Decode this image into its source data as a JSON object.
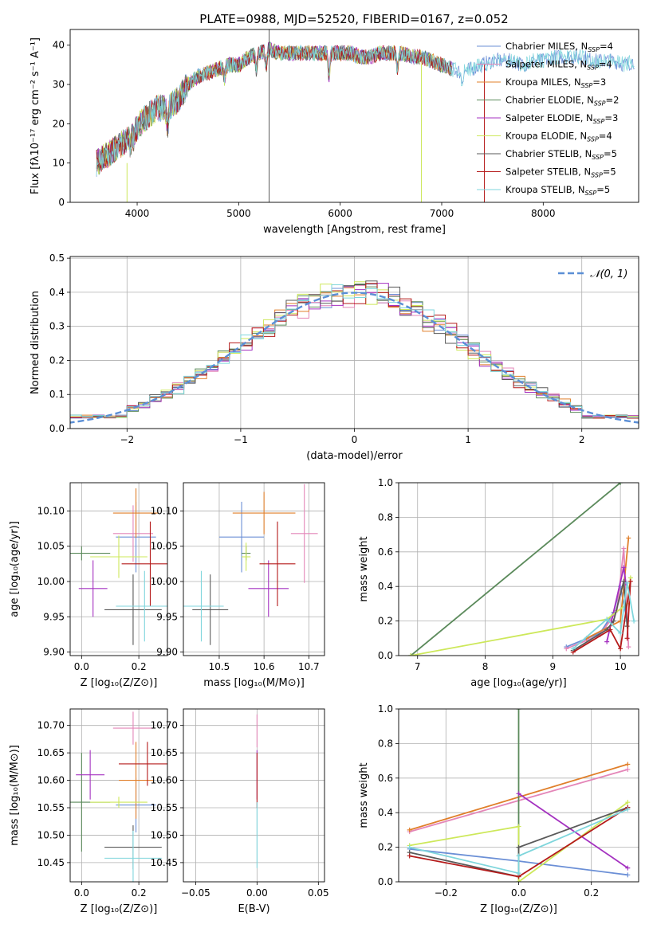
{
  "title": "PLATE=0988, MJD=52520, FIBERID=0167, z=0.052",
  "colors": {
    "chab_miles": "#6b8fd6",
    "salp_miles": "#e486b8",
    "krou_miles": "#e07f2a",
    "chab_elodie": "#5b8a5b",
    "salp_elodie": "#a431c0",
    "krou_elodie": "#cde85a",
    "chab_stelib": "#5a5a5a",
    "salp_stelib": "#b51b1b",
    "krou_stelib": "#7fd6dc",
    "normal": "#5b8fd6",
    "grid": "#b0b0b0"
  },
  "models": [
    {
      "key": "chab_miles",
      "label": "Chabrier MILES, N",
      "sub": "SSP",
      "n": "=4"
    },
    {
      "key": "salp_miles",
      "label": "Salpeter MILES, N",
      "sub": "SSP",
      "n": "=4"
    },
    {
      "key": "krou_miles",
      "label": "Kroupa MILES, N",
      "sub": "SSP",
      "n": "=3"
    },
    {
      "key": "chab_elodie",
      "label": "Chabrier ELODIE, N",
      "sub": "SSP",
      "n": "=2"
    },
    {
      "key": "salp_elodie",
      "label": "Salpeter ELODIE, N",
      "sub": "SSP",
      "n": "=3"
    },
    {
      "key": "krou_elodie",
      "label": "Kroupa ELODIE, N",
      "sub": "SSP",
      "n": "=4"
    },
    {
      "key": "chab_stelib",
      "label": "Chabrier STELIB, N",
      "sub": "SSP",
      "n": "=5"
    },
    {
      "key": "salp_stelib",
      "label": "Salpeter STELIB, N",
      "sub": "SSP",
      "n": "=5"
    },
    {
      "key": "krou_stelib",
      "label": "Kroupa STELIB, N",
      "sub": "SSP",
      "n": "=5"
    }
  ],
  "chart_data": [
    {
      "id": "spectrum",
      "type": "line",
      "xlabel": "wavelength [Angstrom, rest frame]",
      "ylabel": "Flux [fλ10⁻¹⁷ erg cm⁻² s⁻¹ A⁻¹]",
      "xlim": [
        3340,
        8940
      ],
      "ylim": [
        0,
        44
      ],
      "xticks": [
        4000,
        5000,
        6000,
        7000,
        8000
      ],
      "yticks": [
        0,
        10,
        20,
        30,
        40
      ],
      "continuum": [
        [
          3600,
          10
        ],
        [
          3700,
          12
        ],
        [
          3800,
          14
        ],
        [
          3900,
          16
        ],
        [
          4000,
          19
        ],
        [
          4100,
          22
        ],
        [
          4200,
          24
        ],
        [
          4300,
          24
        ],
        [
          4400,
          26
        ],
        [
          4500,
          30
        ],
        [
          4600,
          32
        ],
        [
          4700,
          33
        ],
        [
          4800,
          34
        ],
        [
          4900,
          35
        ],
        [
          5000,
          35
        ],
        [
          5100,
          37
        ],
        [
          5200,
          38
        ],
        [
          5300,
          39
        ],
        [
          5400,
          38
        ],
        [
          5500,
          38
        ],
        [
          5600,
          38
        ],
        [
          5700,
          38
        ],
        [
          5800,
          38
        ],
        [
          5900,
          38
        ],
        [
          6000,
          38
        ],
        [
          6100,
          38
        ],
        [
          6200,
          37
        ],
        [
          6300,
          37
        ],
        [
          6400,
          38
        ],
        [
          6500,
          38
        ],
        [
          6600,
          38
        ],
        [
          6700,
          37
        ],
        [
          6800,
          37
        ],
        [
          6900,
          36
        ],
        [
          7000,
          35
        ],
        [
          7100,
          34
        ],
        [
          7200,
          33
        ],
        [
          7300,
          34
        ],
        [
          7400,
          35
        ],
        [
          7500,
          36
        ],
        [
          7600,
          36
        ],
        [
          7700,
          36
        ],
        [
          7800,
          35
        ],
        [
          7900,
          36
        ],
        [
          8000,
          36
        ],
        [
          8100,
          37
        ],
        [
          8200,
          37
        ],
        [
          8300,
          37
        ],
        [
          8400,
          37
        ],
        [
          8500,
          36
        ],
        [
          8600,
          36
        ],
        [
          8700,
          36
        ],
        [
          8800,
          35
        ],
        [
          8900,
          36
        ]
      ],
      "dips": [
        [
          3933,
          3
        ],
        [
          3968,
          2
        ],
        [
          4300,
          -5
        ],
        [
          4861,
          -3
        ],
        [
          5175,
          -4
        ],
        [
          5270,
          -4
        ],
        [
          5890,
          -6
        ],
        [
          6563,
          -4
        ],
        [
          7200,
          -2
        ]
      ],
      "spikes": [
        {
          "model": "chab_stelib",
          "x": 5300,
          "y": 0,
          "y2": 44
        },
        {
          "model": "krou_elodie",
          "x": 3900,
          "y": 0,
          "y2": 10
        },
        {
          "model": "krou_elodie",
          "x": 6800,
          "y": 0,
          "y2": 35
        },
        {
          "model": "salp_stelib",
          "x": 7420,
          "y": 0,
          "y2": 35
        }
      ]
    },
    {
      "id": "residuals",
      "type": "histogram",
      "xlabel": "(data-model)/error",
      "ylabel": "Normed distribution",
      "xlim": [
        -2.5,
        2.5
      ],
      "ylim": [
        0,
        0.505
      ],
      "xticks": [
        -2,
        -1,
        0,
        1,
        2
      ],
      "yticks": [
        0.0,
        0.1,
        0.2,
        0.3,
        0.4,
        0.5
      ],
      "bin_width": 0.1,
      "series_note": "N(0,1) reference",
      "legend": "𝒩(0, 1)"
    },
    {
      "id": "age_vs_Z",
      "type": "scatter",
      "xlabel": "Z [log₁₀(Z/Z⊙)]",
      "ylabel": "age  [log₁₀(age/yr)]",
      "xlim": [
        -0.04,
        0.3
      ],
      "ylim": [
        9.895,
        10.14
      ],
      "xticks": [
        0.0,
        0.2
      ],
      "yticks": [
        9.9,
        9.95,
        10.0,
        10.05,
        10.1
      ],
      "points": [
        {
          "model": "chab_miles",
          "x": 0.19,
          "y": 10.063,
          "xerr": 0.07,
          "yerr": 0.05
        },
        {
          "model": "salp_miles",
          "x": 0.18,
          "y": 10.068,
          "xerr": 0.07,
          "yerr": 0.04
        },
        {
          "model": "krou_miles",
          "x": 0.19,
          "y": 10.097,
          "xerr": 0.08,
          "yerr": 0.035
        },
        {
          "model": "chab_elodie",
          "x": 0.0,
          "y": 10.04,
          "xerr": 0.1,
          "yerr": 0.01
        },
        {
          "model": "salp_elodie",
          "x": 0.04,
          "y": 9.99,
          "xerr": 0.05,
          "yerr": 0.04
        },
        {
          "model": "krou_elodie",
          "x": 0.13,
          "y": 10.035,
          "xerr": 0.1,
          "yerr": 0.03
        },
        {
          "model": "chab_stelib",
          "x": 0.18,
          "y": 9.96,
          "xerr": 0.1,
          "yerr": 0.05
        },
        {
          "model": "salp_stelib",
          "x": 0.24,
          "y": 10.025,
          "xerr": 0.1,
          "yerr": 0.06
        },
        {
          "model": "krou_stelib",
          "x": 0.22,
          "y": 9.965,
          "xerr": 0.1,
          "yerr": 0.05
        }
      ]
    },
    {
      "id": "age_vs_mass",
      "type": "scatter",
      "xlabel": "mass [log₁₀(M/M⊙)]",
      "ylabel": "",
      "xlim": [
        10.42,
        10.735
      ],
      "ylim": [
        9.895,
        10.14
      ],
      "xticks": [
        10.5,
        10.6,
        10.7
      ],
      "yticks": [
        9.9,
        9.95,
        10.0,
        10.05,
        10.1
      ],
      "points": [
        {
          "model": "chab_miles",
          "x": 10.55,
          "y": 10.063,
          "xerr": 0.05,
          "yerr": 0.05
        },
        {
          "model": "salp_miles",
          "x": 10.69,
          "y": 10.068,
          "xerr": 0.03,
          "yerr": 0.07
        },
        {
          "model": "krou_miles",
          "x": 10.6,
          "y": 10.097,
          "xerr": 0.07,
          "yerr": 0.03
        },
        {
          "model": "chab_elodie",
          "x": 10.56,
          "y": 10.04,
          "xerr": 0.01,
          "yerr": 0.01
        },
        {
          "model": "salp_elodie",
          "x": 10.61,
          "y": 9.99,
          "xerr": 0.045,
          "yerr": 0.04
        },
        {
          "model": "krou_elodie",
          "x": 10.56,
          "y": 10.035,
          "xerr": 0.01,
          "yerr": 0.02
        },
        {
          "model": "chab_stelib",
          "x": 10.48,
          "y": 9.96,
          "xerr": 0.04,
          "yerr": 0.05
        },
        {
          "model": "salp_stelib",
          "x": 10.63,
          "y": 10.025,
          "xerr": 0.04,
          "yerr": 0.06
        },
        {
          "model": "krou_stelib",
          "x": 10.46,
          "y": 9.965,
          "xerr": 0.05,
          "yerr": 0.05
        }
      ]
    },
    {
      "id": "weight_vs_age",
      "type": "line",
      "xlabel": "age  [log₁₀(age/yr)]",
      "ylabel": "mass weight",
      "xlim": [
        6.72,
        10.27
      ],
      "ylim": [
        0,
        1.0
      ],
      "xticks": [
        7,
        8,
        9,
        10
      ],
      "yticks": [
        0.0,
        0.2,
        0.4,
        0.6,
        0.8,
        1.0
      ],
      "series": [
        {
          "model": "chab_miles",
          "x": [
            9.2,
            9.7,
            9.9,
            10.0,
            10.1
          ],
          "y": [
            0.05,
            0.13,
            0.25,
            0.4,
            0.2
          ]
        },
        {
          "model": "salp_miles",
          "x": [
            9.2,
            9.7,
            9.95,
            10.05,
            10.12
          ],
          "y": [
            0.04,
            0.12,
            0.26,
            0.62,
            0.05
          ]
        },
        {
          "model": "krou_miles",
          "x": [
            9.5,
            10.0,
            10.12
          ],
          "y": [
            0.1,
            0.2,
            0.68
          ]
        },
        {
          "model": "chab_elodie",
          "x": [
            6.9,
            10.0
          ],
          "y": [
            0.0,
            1.0
          ]
        },
        {
          "model": "salp_elodie",
          "x": [
            9.8,
            10.05,
            10.08
          ],
          "y": [
            0.08,
            0.51,
            0.42
          ]
        },
        {
          "model": "krou_elodie",
          "x": [
            6.9,
            9.8,
            10.1,
            10.15
          ],
          "y": [
            0.0,
            0.21,
            0.3,
            0.45
          ]
        },
        {
          "model": "chab_stelib",
          "x": [
            9.3,
            9.8,
            9.9,
            10.05,
            10.1
          ],
          "y": [
            0.03,
            0.15,
            0.2,
            0.43,
            0.17
          ]
        },
        {
          "model": "salp_stelib",
          "x": [
            9.3,
            9.85,
            10.0,
            10.15,
            10.1
          ],
          "y": [
            0.02,
            0.15,
            0.04,
            0.43,
            0.1
          ]
        },
        {
          "model": "krou_stelib",
          "x": [
            9.3,
            9.8,
            10.0,
            10.1,
            10.2
          ],
          "y": [
            0.04,
            0.21,
            0.13,
            0.42,
            0.2
          ]
        }
      ]
    },
    {
      "id": "mass_vs_Z",
      "type": "scatter",
      "xlabel": "Z [log₁₀(Z/Z⊙)]",
      "ylabel": "mass [log₁₀(M/M⊙)]",
      "xlim": [
        -0.04,
        0.3
      ],
      "ylim": [
        10.415,
        10.73
      ],
      "xticks": [
        0.0,
        0.2
      ],
      "yticks": [
        10.45,
        10.5,
        10.55,
        10.6,
        10.65,
        10.7
      ],
      "points": [
        {
          "model": "chab_miles",
          "x": 0.19,
          "y": 10.555,
          "xerr": 0.07,
          "yerr": 0.05
        },
        {
          "model": "salp_miles",
          "x": 0.18,
          "y": 10.695,
          "xerr": 0.07,
          "yerr": 0.03
        },
        {
          "model": "krou_miles",
          "x": 0.19,
          "y": 10.6,
          "xerr": 0.06,
          "yerr": 0.07
        },
        {
          "model": "chab_elodie",
          "x": 0.0,
          "y": 10.56,
          "xerr": 0.1,
          "yerr": 0.09
        },
        {
          "model": "salp_elodie",
          "x": 0.03,
          "y": 10.61,
          "xerr": 0.05,
          "yerr": 0.045
        },
        {
          "model": "krou_elodie",
          "x": 0.13,
          "y": 10.56,
          "xerr": 0.1,
          "yerr": 0.01
        },
        {
          "model": "chab_stelib",
          "x": 0.18,
          "y": 10.478,
          "xerr": 0.1,
          "yerr": 0.04
        },
        {
          "model": "salp_stelib",
          "x": 0.23,
          "y": 10.63,
          "xerr": 0.1,
          "yerr": 0.04
        },
        {
          "model": "krou_stelib",
          "x": 0.18,
          "y": 10.458,
          "xerr": 0.1,
          "yerr": 0.05
        }
      ]
    },
    {
      "id": "mass_vs_ebv",
      "type": "scatter",
      "xlabel": "E(B-V)",
      "ylabel": "",
      "xlim": [
        -0.06,
        0.055
      ],
      "ylim": [
        10.415,
        10.73
      ],
      "xticks": [
        -0.05,
        0.0,
        0.05
      ],
      "xticklabels": [
        "−0.05",
        "0.00",
        "0.05"
      ],
      "yticks": [
        10.45,
        10.5,
        10.55,
        10.6,
        10.65,
        10.7
      ],
      "points": [
        {
          "model": "salp_miles",
          "x": 0.0,
          "y": 10.69,
          "xerr": 0.0,
          "yerr": 0.03
        },
        {
          "model": "salp_elodie",
          "x": 0.0,
          "y": 10.61,
          "xerr": 0.0,
          "yerr": 0.045
        },
        {
          "model": "salp_stelib",
          "x": 0.0,
          "y": 10.6,
          "xerr": 0.0,
          "yerr": 0.05
        },
        {
          "model": "krou_stelib",
          "x": 0.0,
          "y": 10.5,
          "xerr": 0.0,
          "yerr": 0.06
        }
      ]
    },
    {
      "id": "weight_vs_Z",
      "type": "line",
      "xlabel": "Z [log₁₀(Z/Z⊙)]",
      "ylabel": "mass weight",
      "xlim": [
        -0.33,
        0.33
      ],
      "ylim": [
        0,
        1.0
      ],
      "xticks": [
        -0.2,
        0.0,
        0.2
      ],
      "xticklabels": [
        "−0.2",
        "0.0",
        "0.2"
      ],
      "yticks": [
        0.0,
        0.2,
        0.4,
        0.6,
        0.8,
        1.0
      ],
      "series": [
        {
          "model": "chab_miles",
          "x": [
            -0.3,
            0.0,
            0.3
          ],
          "y": [
            0.19,
            0.12,
            0.04
          ]
        },
        {
          "model": "salp_miles",
          "x": [
            -0.3,
            0.3
          ],
          "y": [
            0.29,
            0.65
          ]
        },
        {
          "model": "krou_miles",
          "x": [
            -0.3,
            0.3
          ],
          "y": [
            0.3,
            0.68
          ]
        },
        {
          "model": "chab_elodie",
          "x": [
            0.0,
            0.0
          ],
          "y": [
            0.0,
            1.0
          ]
        },
        {
          "model": "salp_elodie",
          "x": [
            0.0,
            0.3
          ],
          "y": [
            0.51,
            0.08
          ]
        },
        {
          "model": "krou_elodie",
          "x": [
            -0.3,
            0.0,
            0.0,
            0.3
          ],
          "y": [
            0.21,
            0.32,
            0.0,
            0.46
          ]
        },
        {
          "model": "chab_stelib",
          "x": [
            -0.3,
            0.0,
            0.0,
            0.3
          ],
          "y": [
            0.17,
            0.03,
            0.2,
            0.43
          ]
        },
        {
          "model": "salp_stelib",
          "x": [
            -0.3,
            0.0,
            0.3
          ],
          "y": [
            0.15,
            0.03,
            0.43
          ]
        },
        {
          "model": "krou_stelib",
          "x": [
            -0.3,
            0.0,
            0.0,
            0.3
          ],
          "y": [
            0.2,
            0.05,
            0.15,
            0.42
          ]
        }
      ]
    }
  ]
}
